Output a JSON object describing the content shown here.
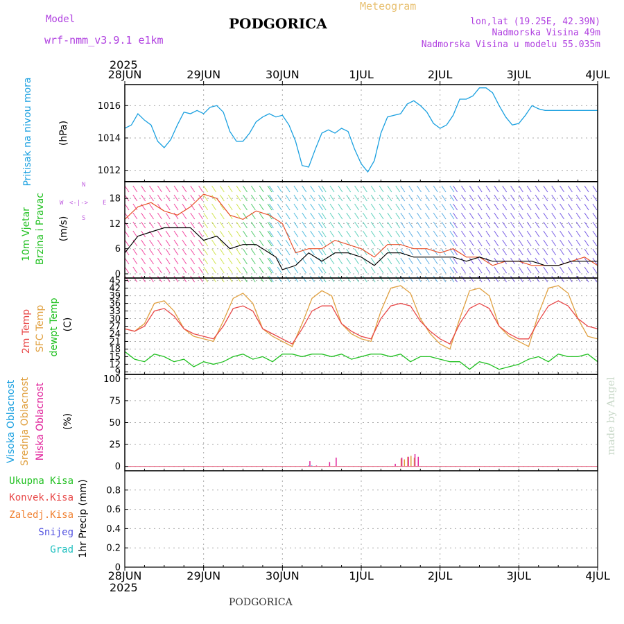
{
  "header": {
    "model_label": "Model",
    "model_name": "wrf-nmm_v3.9.1  e1km",
    "title": "PODGORICA",
    "meteogram": "Meteogram",
    "lonlat": "lon,lat (19.25E, 42.39N)",
    "elevation": "Nadmorska Visina 49m",
    "model_elevation": "Nadmorska Visina u modelu 55.035m"
  },
  "footer": {
    "station": "PODGORICA",
    "credit": "made by Angel"
  },
  "year": "2025",
  "colors": {
    "pressure": "#1aa0e0",
    "temp": "#e84848",
    "sfc": "#e0a040",
    "dew": "#20c020",
    "wind_mean": "#000000",
    "wind_gust": "#e8502a",
    "model": "#b040e0",
    "meteogram": "#e8c070"
  },
  "panels": {
    "pressure": {
      "label": "Pritisak na nivou mora",
      "unit": "(hPa)"
    },
    "wind": {
      "label1": "10m  Vjetar",
      "label2": "Brzina i Pravac",
      "unit": "(m/s)",
      "compass": {
        "n": "N",
        "s": "S",
        "e": "E",
        "w": "W"
      }
    },
    "temp": {
      "label1": "2m Temp",
      "label2": "SFC Temp",
      "label3": "dewpt Temp",
      "unit": "(C)"
    },
    "cloud": {
      "label1": "Visoka Oblacnost",
      "label2": "Srednja Oblacnost",
      "label3": "Niska Oblacnost",
      "unit": "(%)"
    },
    "precip": {
      "unit": "1hr Precip (mm)",
      "legend": [
        {
          "name": "Ukupna  Kisa",
          "color": "#20c020"
        },
        {
          "name": "Konvek.Kisa",
          "color": "#e84848"
        },
        {
          "name": "Zaledj.Kisa",
          "color": "#f08030"
        },
        {
          "name": "Snijeg",
          "color": "#5050e0"
        },
        {
          "name": "Grad",
          "color": "#20c0c0"
        }
      ]
    }
  },
  "chart_data": [
    {
      "type": "line",
      "x_axis": {
        "categories": [
          "28JUN",
          "29JUN",
          "30JUN",
          "1JUL",
          "2JUL",
          "3JUL",
          "4JUL"
        ],
        "xlim_hours": [
          0,
          144
        ]
      },
      "ylabel": "(hPa)",
      "ylim": [
        1011.3,
        1017.3
      ],
      "yticks": [
        1012,
        1014,
        1016
      ],
      "grid": true,
      "series": [
        {
          "name": "Pritisak na nivou mora",
          "x": [
            0,
            2,
            4,
            6,
            8,
            10,
            12,
            14,
            16,
            18,
            20,
            22,
            24,
            26,
            28,
            30,
            32,
            34,
            36,
            38,
            40,
            42,
            44,
            46,
            48,
            50,
            52,
            54,
            56,
            58,
            60,
            62,
            64,
            66,
            68,
            70,
            72,
            74,
            76,
            78,
            80,
            82,
            84,
            86,
            88,
            90,
            92,
            94,
            96,
            98,
            100,
            102,
            104,
            106,
            108,
            110,
            112,
            114,
            116,
            118,
            120,
            122,
            124,
            126,
            128,
            130,
            132,
            134,
            136,
            138,
            140,
            142,
            144
          ],
          "y": [
            1014.6,
            1014.8,
            1015.5,
            1015.1,
            1014.8,
            1013.8,
            1013.4,
            1013.9,
            1014.8,
            1015.6,
            1015.5,
            1015.7,
            1015.5,
            1015.9,
            1016.0,
            1015.6,
            1014.4,
            1013.8,
            1013.8,
            1014.3,
            1015.0,
            1015.3,
            1015.5,
            1015.3,
            1015.4,
            1014.8,
            1013.8,
            1012.3,
            1012.2,
            1013.3,
            1014.3,
            1014.5,
            1014.3,
            1014.6,
            1014.4,
            1013.3,
            1012.4,
            1011.9,
            1012.6,
            1014.3,
            1015.3,
            1015.4,
            1015.5,
            1016.1,
            1016.3,
            1016.0,
            1015.6,
            1014.9,
            1014.6,
            1014.8,
            1015.4,
            1016.4,
            1016.4,
            1016.6,
            1017.1,
            1017.1,
            1016.8,
            1016.0,
            1015.3,
            1014.8,
            1014.9,
            1015.4,
            1016.0,
            1015.8,
            1015.7,
            1015.7,
            1015.7,
            1015.7,
            1015.7,
            1015.7,
            1015.7,
            1015.7,
            1015.7
          ]
        }
      ]
    },
    {
      "type": "line",
      "ylabel": "(m/s)",
      "ylim": [
        -1,
        22
      ],
      "yticks": [
        0,
        6,
        12,
        18
      ],
      "grid": true,
      "series": [
        {
          "name": "mean wind",
          "x": [
            0,
            4,
            8,
            12,
            16,
            20,
            24,
            28,
            32,
            36,
            40,
            42,
            44,
            46,
            48,
            52,
            56,
            60,
            64,
            68,
            72,
            76,
            80,
            84,
            88,
            92,
            96,
            100,
            104,
            108,
            112,
            116,
            120,
            124,
            128,
            132,
            136,
            140,
            144
          ],
          "y": [
            5,
            9,
            10,
            11,
            11,
            11,
            8,
            9,
            6,
            7,
            7,
            6,
            5,
            4,
            1,
            2,
            5,
            3,
            5,
            5,
            4,
            2,
            5,
            5,
            4,
            4,
            4,
            4,
            3,
            4,
            3,
            3,
            3,
            3,
            2,
            2,
            3,
            3,
            3
          ]
        },
        {
          "name": "gust",
          "x": [
            0,
            4,
            8,
            12,
            16,
            20,
            24,
            28,
            32,
            36,
            40,
            44,
            48,
            52,
            56,
            60,
            64,
            68,
            72,
            76,
            80,
            84,
            88,
            92,
            96,
            100,
            104,
            108,
            112,
            116,
            120,
            124,
            128,
            132,
            136,
            140,
            144
          ],
          "y": [
            13,
            16,
            17,
            15,
            14,
            16,
            19,
            18,
            14,
            13,
            15,
            14,
            12,
            5,
            6,
            6,
            8,
            7,
            6,
            4,
            7,
            7,
            6,
            6,
            5,
            6,
            4,
            4,
            2,
            3,
            3,
            2,
            2,
            2,
            3,
            4,
            2
          ]
        }
      ]
    },
    {
      "type": "line",
      "ylabel": "(C)",
      "ylim": [
        8,
        46
      ],
      "yticks": [
        9,
        12,
        15,
        18,
        21,
        24,
        27,
        30,
        33,
        36,
        39,
        42,
        45
      ],
      "grid": true,
      "series": [
        {
          "name": "2m Temp",
          "x": [
            0,
            3,
            6,
            9,
            12,
            15,
            18,
            21,
            24,
            27,
            30,
            33,
            36,
            39,
            42,
            45,
            48,
            51,
            54,
            57,
            60,
            63,
            66,
            69,
            72,
            75,
            78,
            81,
            84,
            87,
            90,
            93,
            96,
            99,
            102,
            105,
            108,
            111,
            114,
            117,
            120,
            123,
            126,
            129,
            132,
            135,
            138,
            141,
            144
          ],
          "y": [
            26,
            25,
            27,
            33,
            34,
            31,
            26,
            24,
            23,
            22,
            27,
            34,
            35,
            33,
            26,
            24,
            22,
            20,
            26,
            33,
            35,
            35,
            28,
            25,
            23,
            22,
            30,
            35,
            36,
            35,
            29,
            25,
            22,
            20,
            28,
            34,
            36,
            34,
            27,
            24,
            22,
            22,
            29,
            35,
            37,
            35,
            30,
            27,
            26
          ]
        },
        {
          "name": "SFC Temp",
          "x": [
            0,
            3,
            6,
            9,
            12,
            15,
            18,
            21,
            24,
            27,
            30,
            33,
            36,
            39,
            42,
            45,
            48,
            51,
            54,
            57,
            60,
            63,
            66,
            69,
            72,
            75,
            78,
            81,
            84,
            87,
            90,
            93,
            96,
            99,
            102,
            105,
            108,
            111,
            114,
            117,
            120,
            123,
            126,
            129,
            132,
            135,
            138,
            141,
            144
          ],
          "y": [
            26,
            25,
            28,
            36,
            37,
            33,
            26,
            23,
            22,
            21,
            29,
            38,
            40,
            36,
            26,
            23,
            21,
            19,
            28,
            38,
            41,
            39,
            28,
            24,
            22,
            21,
            33,
            42,
            43,
            40,
            30,
            24,
            20,
            18,
            30,
            41,
            42,
            39,
            27,
            23,
            21,
            19,
            32,
            42,
            43,
            40,
            30,
            23,
            22
          ]
        },
        {
          "name": "dewpt Temp",
          "x": [
            0,
            3,
            6,
            9,
            12,
            15,
            18,
            21,
            24,
            27,
            30,
            33,
            36,
            39,
            42,
            45,
            48,
            51,
            54,
            57,
            60,
            63,
            66,
            69,
            72,
            75,
            78,
            81,
            84,
            87,
            90,
            93,
            96,
            99,
            102,
            105,
            108,
            111,
            114,
            117,
            120,
            123,
            126,
            129,
            132,
            135,
            138,
            141,
            144
          ],
          "y": [
            17,
            14,
            13,
            16,
            15,
            13,
            14,
            11,
            13,
            12,
            13,
            15,
            16,
            14,
            15,
            13,
            16,
            16,
            15,
            16,
            16,
            15,
            16,
            14,
            15,
            16,
            16,
            15,
            16,
            13,
            15,
            15,
            14,
            13,
            13,
            10,
            13,
            12,
            10,
            11,
            12,
            14,
            15,
            13,
            16,
            15,
            15,
            16,
            13
          ]
        }
      ]
    },
    {
      "type": "bar",
      "ylabel": "(%)",
      "ylim": [
        -5,
        105
      ],
      "yticks": [
        0,
        25,
        50,
        75,
        100
      ],
      "grid": true,
      "series": [
        {
          "name": "Visoka Oblacnost",
          "x": [
            56,
            57
          ],
          "values": [
            1,
            1
          ]
        },
        {
          "name": "Srednja Oblacnost",
          "x": [
            84,
            85,
            86,
            87,
            88
          ],
          "values": [
            9,
            8,
            11,
            12,
            10
          ]
        },
        {
          "name": "Niska Oblacnost",
          "x": [
            56,
            58,
            62,
            64,
            82,
            84,
            86,
            88,
            89
          ],
          "values": [
            6,
            1,
            5,
            10,
            3,
            10,
            11,
            14,
            11
          ]
        }
      ]
    },
    {
      "type": "bar",
      "ylabel": "1hr Precip (mm)",
      "ylim": [
        0,
        1.0
      ],
      "yticks": [
        0,
        0.2,
        0.4,
        0.6,
        0.8
      ],
      "grid": true,
      "series": [
        {
          "name": "Ukupna  Kisa",
          "values": []
        }
      ]
    }
  ]
}
